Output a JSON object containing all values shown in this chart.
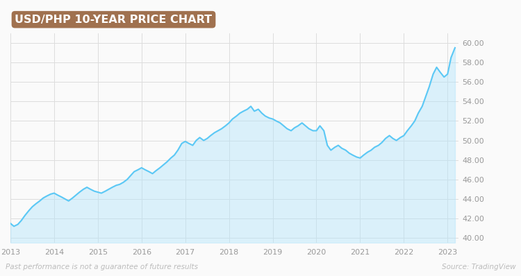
{
  "title": "USD/PHP 10-YEAR PRICE CHART",
  "title_bg_color": "#a0714f",
  "title_text_color": "#ffffff",
  "bg_color": "#fafafa",
  "line_color": "#5bc8f5",
  "fill_color_top": "#b3e5fc",
  "fill_color_bottom": "#e8f6fd",
  "ylabel_color": "#999999",
  "grid_color": "#dddddd",
  "footnote_left": "Past performance is not a guarantee of future results",
  "footnote_right": "Source: TradingView",
  "footnote_color": "#bbbbbb",
  "x_labels": [
    "2013",
    "2014",
    "2015",
    "2016",
    "2017",
    "2018",
    "2019",
    "2020",
    "2021",
    "2022",
    "2023"
  ],
  "ylim": [
    39.5,
    61.0
  ],
  "yticks": [
    40.0,
    42.0,
    44.0,
    46.0,
    48.0,
    50.0,
    52.0,
    54.0,
    56.0,
    58.0,
    60.0
  ],
  "data_x": [
    2013.0,
    2013.08,
    2013.17,
    2013.25,
    2013.33,
    2013.42,
    2013.5,
    2013.58,
    2013.67,
    2013.75,
    2013.83,
    2013.92,
    2014.0,
    2014.08,
    2014.17,
    2014.25,
    2014.33,
    2014.42,
    2014.5,
    2014.58,
    2014.67,
    2014.75,
    2014.83,
    2014.92,
    2015.0,
    2015.08,
    2015.17,
    2015.25,
    2015.33,
    2015.42,
    2015.5,
    2015.58,
    2015.67,
    2015.75,
    2015.83,
    2015.92,
    2016.0,
    2016.08,
    2016.17,
    2016.25,
    2016.33,
    2016.42,
    2016.5,
    2016.58,
    2016.67,
    2016.75,
    2016.83,
    2016.92,
    2017.0,
    2017.08,
    2017.17,
    2017.25,
    2017.33,
    2017.42,
    2017.5,
    2017.58,
    2017.67,
    2017.75,
    2017.83,
    2017.92,
    2018.0,
    2018.08,
    2018.17,
    2018.25,
    2018.33,
    2018.42,
    2018.5,
    2018.58,
    2018.67,
    2018.75,
    2018.83,
    2018.92,
    2019.0,
    2019.08,
    2019.17,
    2019.25,
    2019.33,
    2019.42,
    2019.5,
    2019.58,
    2019.67,
    2019.75,
    2019.83,
    2019.92,
    2020.0,
    2020.08,
    2020.17,
    2020.25,
    2020.33,
    2020.42,
    2020.5,
    2020.58,
    2020.67,
    2020.75,
    2020.83,
    2020.92,
    2021.0,
    2021.08,
    2021.17,
    2021.25,
    2021.33,
    2021.42,
    2021.5,
    2021.58,
    2021.67,
    2021.75,
    2021.83,
    2021.92,
    2022.0,
    2022.08,
    2022.17,
    2022.25,
    2022.33,
    2022.42,
    2022.5,
    2022.58,
    2022.67,
    2022.75,
    2022.83,
    2022.92,
    2023.0,
    2023.08,
    2023.17
  ],
  "data_y": [
    41.5,
    41.2,
    41.4,
    41.8,
    42.3,
    42.8,
    43.2,
    43.5,
    43.8,
    44.1,
    44.3,
    44.5,
    44.6,
    44.4,
    44.2,
    44.0,
    43.8,
    44.1,
    44.4,
    44.7,
    45.0,
    45.2,
    45.0,
    44.8,
    44.7,
    44.6,
    44.8,
    45.0,
    45.2,
    45.4,
    45.5,
    45.7,
    46.0,
    46.4,
    46.8,
    47.0,
    47.2,
    47.0,
    46.8,
    46.6,
    46.9,
    47.2,
    47.5,
    47.8,
    48.2,
    48.5,
    49.0,
    49.7,
    49.9,
    49.7,
    49.5,
    50.0,
    50.3,
    50.0,
    50.2,
    50.5,
    50.8,
    51.0,
    51.2,
    51.5,
    51.8,
    52.2,
    52.5,
    52.8,
    53.0,
    53.2,
    53.5,
    53.0,
    53.2,
    52.8,
    52.5,
    52.3,
    52.2,
    52.0,
    51.8,
    51.5,
    51.2,
    51.0,
    51.3,
    51.5,
    51.8,
    51.5,
    51.2,
    51.0,
    51.0,
    51.5,
    51.0,
    49.5,
    49.0,
    49.3,
    49.5,
    49.2,
    49.0,
    48.7,
    48.5,
    48.3,
    48.2,
    48.5,
    48.8,
    49.0,
    49.3,
    49.5,
    49.8,
    50.2,
    50.5,
    50.2,
    50.0,
    50.3,
    50.5,
    51.0,
    51.5,
    52.0,
    52.8,
    53.5,
    54.5,
    55.5,
    56.8,
    57.5,
    57.0,
    56.5,
    56.8,
    58.5,
    59.5
  ]
}
